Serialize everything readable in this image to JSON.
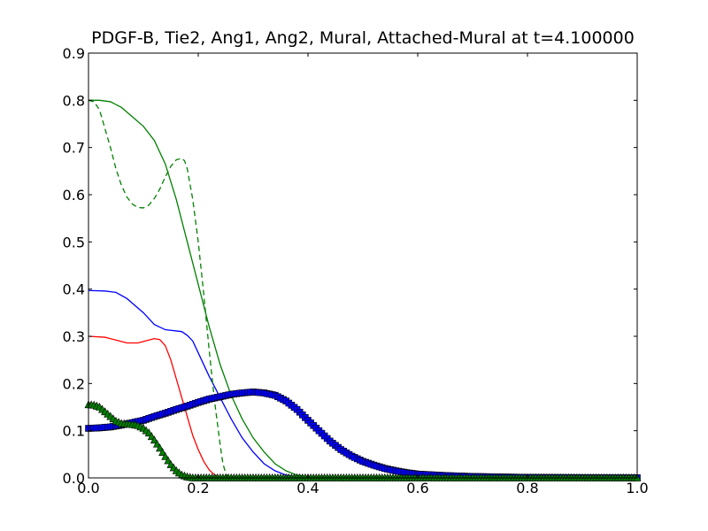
{
  "chart_data": {
    "type": "line",
    "title": "PDGF-B, Tie2, Ang1, Ang2, Mural, Attached-Mural at t=4.100000",
    "xlabel": "",
    "ylabel": "",
    "xlim": [
      0.0,
      1.0
    ],
    "ylim": [
      0.0,
      0.9
    ],
    "x_ticks": [
      0.0,
      0.2,
      0.4,
      0.6,
      0.8,
      1.0
    ],
    "x_tick_labels": [
      "0.0",
      "0.2",
      "0.4",
      "0.6",
      "0.8",
      "1.0"
    ],
    "y_ticks": [
      0.0,
      0.1,
      0.2,
      0.3,
      0.4,
      0.5,
      0.6,
      0.7,
      0.8,
      0.9
    ],
    "y_tick_labels": [
      "0.0",
      "0.1",
      "0.2",
      "0.3",
      "0.4",
      "0.5",
      "0.6",
      "0.7",
      "0.8",
      "0.9"
    ],
    "grid": false,
    "legend": "none",
    "series": [
      {
        "color": "#0000ff",
        "style": "solid",
        "points": [
          [
            0.0,
            0.397
          ],
          [
            0.03,
            0.396
          ],
          [
            0.05,
            0.393
          ],
          [
            0.07,
            0.38
          ],
          [
            0.1,
            0.35
          ],
          [
            0.12,
            0.325
          ],
          [
            0.14,
            0.314
          ],
          [
            0.17,
            0.31
          ],
          [
            0.18,
            0.302
          ],
          [
            0.19,
            0.29
          ],
          [
            0.2,
            0.265
          ],
          [
            0.22,
            0.215
          ],
          [
            0.24,
            0.17
          ],
          [
            0.26,
            0.125
          ],
          [
            0.28,
            0.085
          ],
          [
            0.3,
            0.055
          ],
          [
            0.32,
            0.03
          ],
          [
            0.34,
            0.015
          ],
          [
            0.36,
            0.006
          ],
          [
            0.38,
            0.002
          ],
          [
            0.4,
            0.0
          ],
          [
            1.0,
            0.0
          ]
        ]
      },
      {
        "color": "#ff0000",
        "style": "solid",
        "points": [
          [
            0.0,
            0.3
          ],
          [
            0.03,
            0.298
          ],
          [
            0.05,
            0.292
          ],
          [
            0.07,
            0.286
          ],
          [
            0.09,
            0.286
          ],
          [
            0.11,
            0.292
          ],
          [
            0.12,
            0.295
          ],
          [
            0.13,
            0.293
          ],
          [
            0.14,
            0.28
          ],
          [
            0.15,
            0.25
          ],
          [
            0.16,
            0.21
          ],
          [
            0.17,
            0.17
          ],
          [
            0.18,
            0.13
          ],
          [
            0.19,
            0.09
          ],
          [
            0.2,
            0.06
          ],
          [
            0.21,
            0.035
          ],
          [
            0.22,
            0.017
          ],
          [
            0.23,
            0.006
          ],
          [
            0.24,
            0.002
          ],
          [
            0.25,
            0.0
          ],
          [
            1.0,
            0.0
          ]
        ]
      },
      {
        "color": "#008000",
        "style": "solid",
        "points": [
          [
            0.0,
            0.8
          ],
          [
            0.02,
            0.8
          ],
          [
            0.04,
            0.797
          ],
          [
            0.06,
            0.785
          ],
          [
            0.08,
            0.765
          ],
          [
            0.1,
            0.745
          ],
          [
            0.12,
            0.715
          ],
          [
            0.14,
            0.665
          ],
          [
            0.16,
            0.59
          ],
          [
            0.18,
            0.5
          ],
          [
            0.2,
            0.41
          ],
          [
            0.22,
            0.32
          ],
          [
            0.24,
            0.24
          ],
          [
            0.26,
            0.175
          ],
          [
            0.28,
            0.125
          ],
          [
            0.3,
            0.085
          ],
          [
            0.32,
            0.055
          ],
          [
            0.34,
            0.03
          ],
          [
            0.36,
            0.015
          ],
          [
            0.38,
            0.006
          ],
          [
            0.4,
            0.002
          ],
          [
            0.42,
            0.0
          ],
          [
            1.0,
            0.0
          ]
        ]
      },
      {
        "color": "#008000",
        "style": "dashed",
        "points": [
          [
            0.0,
            0.8
          ],
          [
            0.01,
            0.797
          ],
          [
            0.02,
            0.78
          ],
          [
            0.03,
            0.74
          ],
          [
            0.04,
            0.7
          ],
          [
            0.05,
            0.655
          ],
          [
            0.06,
            0.62
          ],
          [
            0.07,
            0.595
          ],
          [
            0.08,
            0.58
          ],
          [
            0.09,
            0.573
          ],
          [
            0.1,
            0.572
          ],
          [
            0.11,
            0.578
          ],
          [
            0.12,
            0.592
          ],
          [
            0.13,
            0.612
          ],
          [
            0.14,
            0.638
          ],
          [
            0.15,
            0.66
          ],
          [
            0.16,
            0.674
          ],
          [
            0.17,
            0.677
          ],
          [
            0.175,
            0.672
          ],
          [
            0.18,
            0.655
          ],
          [
            0.19,
            0.59
          ],
          [
            0.2,
            0.5
          ],
          [
            0.21,
            0.39
          ],
          [
            0.22,
            0.27
          ],
          [
            0.23,
            0.16
          ],
          [
            0.24,
            0.07
          ],
          [
            0.245,
            0.03
          ],
          [
            0.25,
            0.01
          ],
          [
            0.255,
            0.0
          ],
          [
            1.0,
            0.0
          ]
        ]
      },
      {
        "color": "#0000ff",
        "style": "solid",
        "marker": "square",
        "points": [
          [
            0.0,
            0.105
          ],
          [
            0.02,
            0.106
          ],
          [
            0.04,
            0.108
          ],
          [
            0.06,
            0.112
          ],
          [
            0.08,
            0.117
          ],
          [
            0.1,
            0.122
          ],
          [
            0.12,
            0.13
          ],
          [
            0.14,
            0.137
          ],
          [
            0.16,
            0.145
          ],
          [
            0.18,
            0.152
          ],
          [
            0.2,
            0.16
          ],
          [
            0.22,
            0.167
          ],
          [
            0.24,
            0.172
          ],
          [
            0.26,
            0.177
          ],
          [
            0.28,
            0.18
          ],
          [
            0.3,
            0.182
          ],
          [
            0.32,
            0.18
          ],
          [
            0.34,
            0.175
          ],
          [
            0.36,
            0.163
          ],
          [
            0.38,
            0.145
          ],
          [
            0.4,
            0.122
          ],
          [
            0.42,
            0.1
          ],
          [
            0.44,
            0.078
          ],
          [
            0.46,
            0.06
          ],
          [
            0.48,
            0.046
          ],
          [
            0.5,
            0.035
          ],
          [
            0.52,
            0.027
          ],
          [
            0.54,
            0.02
          ],
          [
            0.56,
            0.015
          ],
          [
            0.58,
            0.011
          ],
          [
            0.6,
            0.008
          ],
          [
            0.65,
            0.005
          ],
          [
            0.7,
            0.003
          ],
          [
            0.75,
            0.002
          ],
          [
            0.8,
            0.001
          ],
          [
            0.9,
            0.0005
          ],
          [
            1.0,
            0.0003
          ]
        ]
      },
      {
        "color": "#008000",
        "style": "solid",
        "marker": "triangle",
        "points": [
          [
            0.0,
            0.155
          ],
          [
            0.01,
            0.154
          ],
          [
            0.02,
            0.15
          ],
          [
            0.03,
            0.14
          ],
          [
            0.04,
            0.13
          ],
          [
            0.05,
            0.12
          ],
          [
            0.06,
            0.115
          ],
          [
            0.07,
            0.114
          ],
          [
            0.08,
            0.113
          ],
          [
            0.09,
            0.111
          ],
          [
            0.1,
            0.105
          ],
          [
            0.11,
            0.095
          ],
          [
            0.12,
            0.08
          ],
          [
            0.13,
            0.063
          ],
          [
            0.14,
            0.045
          ],
          [
            0.15,
            0.028
          ],
          [
            0.16,
            0.015
          ],
          [
            0.17,
            0.006
          ],
          [
            0.18,
            0.002
          ],
          [
            0.19,
            0.0
          ],
          [
            1.0,
            0.0
          ]
        ]
      }
    ]
  }
}
